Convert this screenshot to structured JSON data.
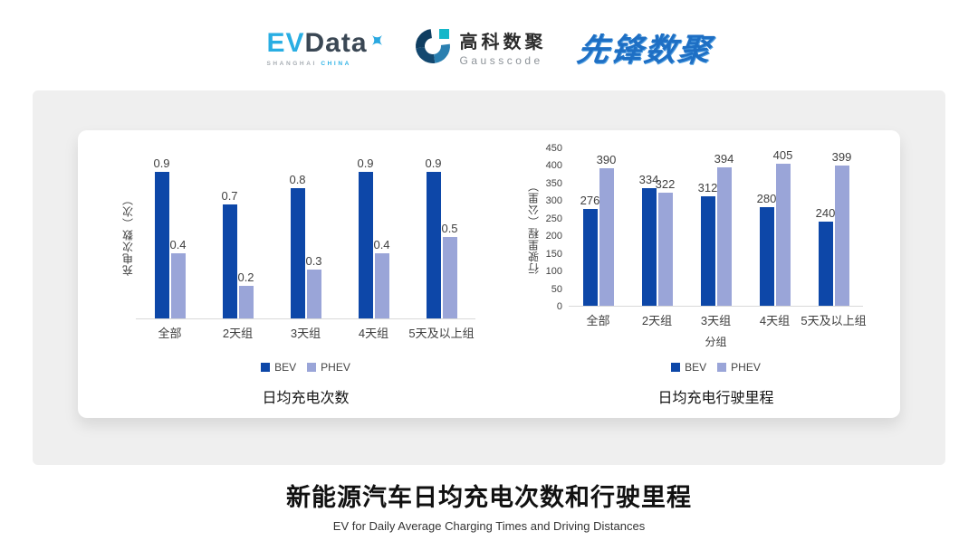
{
  "header": {
    "evdata_logo": {
      "ev": "EV",
      "data": "Data",
      "sub_left": "SHANGHAI",
      "sub_right": "CHINA"
    },
    "gausscode_logo": {
      "cn": "高科数聚",
      "en": "Gausscode"
    },
    "pioneer_logo": {
      "text": "先锋数聚"
    }
  },
  "chart_data": [
    {
      "type": "bar",
      "title": "日均充电次数",
      "ylabel": "充电次数（次）",
      "xlabel": "",
      "categories": [
        "全部",
        "2天组",
        "3天组",
        "4天组",
        "5天及以上组"
      ],
      "series": [
        {
          "name": "BEV",
          "values": [
            0.9,
            0.7,
            0.8,
            0.9,
            0.9
          ]
        },
        {
          "name": "PHEV",
          "values": [
            0.4,
            0.2,
            0.3,
            0.4,
            0.5
          ]
        }
      ],
      "ylim": [
        0,
        1.0
      ],
      "yticks": [],
      "grid": false,
      "legend_position": "bottom"
    },
    {
      "type": "bar",
      "title": "日均充电行驶里程",
      "ylabel": "行驶里程（公里）",
      "xlabel": "分组",
      "categories": [
        "全部",
        "2天组",
        "3天组",
        "4天组",
        "5天及以上组"
      ],
      "series": [
        {
          "name": "BEV",
          "values": [
            276,
            334,
            312,
            280,
            240
          ]
        },
        {
          "name": "PHEV",
          "values": [
            390,
            322,
            394,
            405,
            399
          ]
        }
      ],
      "ylim": [
        0,
        450
      ],
      "yticks": [
        0,
        50,
        100,
        150,
        200,
        250,
        300,
        350,
        400,
        450
      ],
      "grid": false,
      "legend_position": "bottom"
    }
  ],
  "footer": {
    "title": "新能源汽车日均充电次数和行驶里程",
    "subtitle": "EV for Daily Average Charging Times and Driving Distances"
  },
  "colors": {
    "bev": "#0d47a8",
    "phev": "#9aa5d8",
    "axis_line": "#d9d9d9",
    "panel_bg": "#efefef",
    "card_bg": "#ffffff",
    "label_text": "#404040"
  },
  "icons": {
    "evdata_star": "four-point-star",
    "gausscode_mark": "circular-g-ring-with-square"
  }
}
